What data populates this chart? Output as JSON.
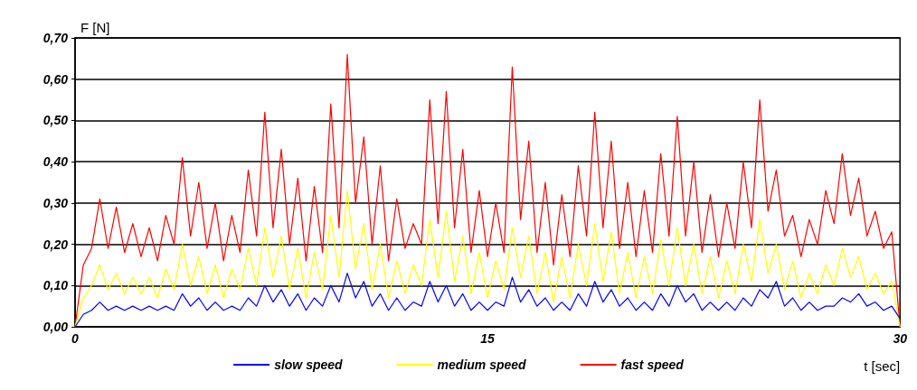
{
  "chart_data": {
    "type": "line",
    "ylabel": "F [N]",
    "xlabel": "t [sec]",
    "x": [
      0,
      0.3,
      0.6,
      0.9,
      1.2,
      1.5,
      1.8,
      2.1,
      2.4,
      2.7,
      3,
      3.3,
      3.6,
      3.9,
      4.2,
      4.5,
      4.8,
      5.1,
      5.4,
      5.7,
      6,
      6.3,
      6.6,
      6.9,
      7.2,
      7.5,
      7.8,
      8.1,
      8.4,
      8.7,
      9,
      9.3,
      9.6,
      9.9,
      10.2,
      10.5,
      10.8,
      11.1,
      11.4,
      11.7,
      12,
      12.3,
      12.6,
      12.9,
      13.2,
      13.5,
      13.8,
      14.1,
      14.4,
      14.7,
      15,
      15.3,
      15.6,
      15.9,
      16.2,
      16.5,
      16.8,
      17.1,
      17.4,
      17.7,
      18,
      18.3,
      18.6,
      18.9,
      19.2,
      19.5,
      19.8,
      20.1,
      20.4,
      20.7,
      21,
      21.3,
      21.6,
      21.9,
      22.2,
      22.5,
      22.8,
      23.1,
      23.4,
      23.7,
      24,
      24.3,
      24.6,
      24.9,
      25.2,
      25.5,
      25.8,
      26.1,
      26.4,
      26.7,
      27,
      27.3,
      27.6,
      27.9,
      28.2,
      28.5,
      28.8,
      29.1,
      29.4,
      29.7,
      30
    ],
    "series": [
      {
        "name": "slow speed",
        "color": "#0000ff",
        "values": [
          0.0,
          0.03,
          0.04,
          0.06,
          0.04,
          0.05,
          0.04,
          0.05,
          0.04,
          0.05,
          0.04,
          0.05,
          0.04,
          0.08,
          0.05,
          0.07,
          0.04,
          0.06,
          0.04,
          0.05,
          0.04,
          0.07,
          0.05,
          0.1,
          0.06,
          0.09,
          0.05,
          0.08,
          0.04,
          0.07,
          0.05,
          0.1,
          0.06,
          0.13,
          0.07,
          0.11,
          0.05,
          0.08,
          0.04,
          0.07,
          0.04,
          0.06,
          0.05,
          0.11,
          0.06,
          0.1,
          0.05,
          0.08,
          0.04,
          0.06,
          0.04,
          0.06,
          0.05,
          0.12,
          0.06,
          0.09,
          0.05,
          0.07,
          0.04,
          0.06,
          0.04,
          0.08,
          0.05,
          0.11,
          0.06,
          0.09,
          0.05,
          0.07,
          0.04,
          0.06,
          0.04,
          0.08,
          0.05,
          0.1,
          0.06,
          0.08,
          0.04,
          0.06,
          0.04,
          0.06,
          0.04,
          0.07,
          0.05,
          0.09,
          0.07,
          0.11,
          0.05,
          0.07,
          0.04,
          0.06,
          0.04,
          0.05,
          0.05,
          0.07,
          0.06,
          0.08,
          0.05,
          0.06,
          0.04,
          0.05,
          0.02
        ]
      },
      {
        "name": "medium speed",
        "color": "#ffff00",
        "values": [
          0.0,
          0.07,
          0.1,
          0.15,
          0.09,
          0.13,
          0.08,
          0.12,
          0.08,
          0.12,
          0.07,
          0.14,
          0.09,
          0.2,
          0.1,
          0.17,
          0.08,
          0.15,
          0.07,
          0.14,
          0.09,
          0.19,
          0.1,
          0.24,
          0.12,
          0.22,
          0.09,
          0.19,
          0.07,
          0.18,
          0.09,
          0.27,
          0.12,
          0.33,
          0.14,
          0.25,
          0.09,
          0.2,
          0.07,
          0.16,
          0.08,
          0.15,
          0.1,
          0.26,
          0.12,
          0.28,
          0.11,
          0.22,
          0.08,
          0.18,
          0.07,
          0.16,
          0.09,
          0.24,
          0.12,
          0.22,
          0.08,
          0.18,
          0.06,
          0.17,
          0.07,
          0.2,
          0.1,
          0.25,
          0.11,
          0.23,
          0.08,
          0.18,
          0.07,
          0.17,
          0.08,
          0.21,
          0.1,
          0.24,
          0.1,
          0.2,
          0.08,
          0.17,
          0.07,
          0.16,
          0.08,
          0.2,
          0.11,
          0.26,
          0.13,
          0.2,
          0.09,
          0.16,
          0.07,
          0.13,
          0.08,
          0.15,
          0.1,
          0.19,
          0.12,
          0.17,
          0.09,
          0.13,
          0.08,
          0.11,
          0.0
        ]
      },
      {
        "name": "fast speed",
        "color": "#ff0000",
        "values": [
          0.0,
          0.15,
          0.19,
          0.31,
          0.19,
          0.29,
          0.18,
          0.25,
          0.17,
          0.24,
          0.16,
          0.27,
          0.2,
          0.41,
          0.22,
          0.35,
          0.19,
          0.3,
          0.16,
          0.27,
          0.18,
          0.38,
          0.22,
          0.52,
          0.24,
          0.43,
          0.2,
          0.36,
          0.16,
          0.34,
          0.18,
          0.54,
          0.24,
          0.66,
          0.3,
          0.46,
          0.2,
          0.39,
          0.16,
          0.31,
          0.19,
          0.25,
          0.2,
          0.55,
          0.25,
          0.57,
          0.24,
          0.43,
          0.18,
          0.33,
          0.17,
          0.3,
          0.18,
          0.63,
          0.26,
          0.45,
          0.18,
          0.35,
          0.15,
          0.32,
          0.17,
          0.39,
          0.22,
          0.52,
          0.24,
          0.45,
          0.19,
          0.35,
          0.17,
          0.33,
          0.18,
          0.42,
          0.22,
          0.51,
          0.22,
          0.4,
          0.18,
          0.32,
          0.17,
          0.3,
          0.19,
          0.4,
          0.24,
          0.55,
          0.28,
          0.38,
          0.22,
          0.27,
          0.17,
          0.26,
          0.2,
          0.33,
          0.25,
          0.42,
          0.27,
          0.36,
          0.22,
          0.28,
          0.19,
          0.23,
          0.0
        ]
      }
    ],
    "xlim": [
      0,
      30
    ],
    "xticks": [
      0,
      15,
      30
    ],
    "ylim": [
      0,
      0.7
    ],
    "yticks": [
      {
        "value": 0,
        "label": "0,00"
      },
      {
        "value": 0.1,
        "label": "0,10"
      },
      {
        "value": 0.2,
        "label": "0,20"
      },
      {
        "value": 0.3,
        "label": "0,30"
      },
      {
        "value": 0.4,
        "label": "0,40"
      },
      {
        "value": 0.5,
        "label": "0,50"
      },
      {
        "value": 0.6,
        "label": "0,60"
      },
      {
        "value": 0.7,
        "label": "0,70"
      }
    ],
    "grid": "y",
    "legend": "bottom"
  }
}
